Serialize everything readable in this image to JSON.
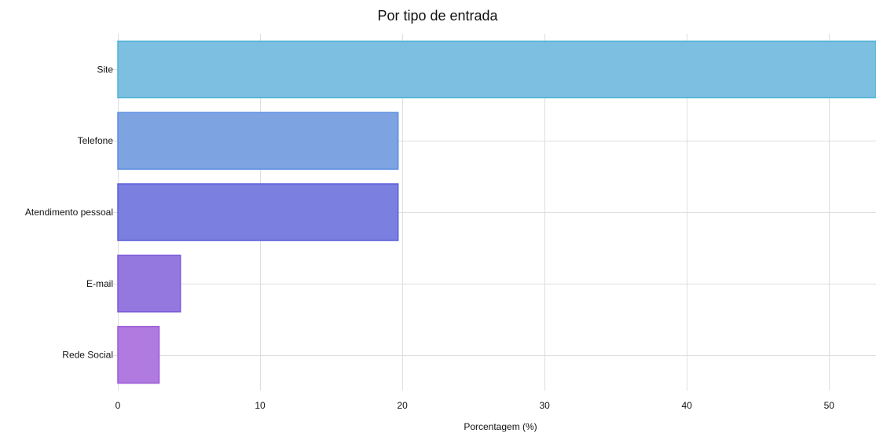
{
  "chart_data": {
    "type": "bar",
    "orientation": "horizontal",
    "title": "Por tipo de entrada",
    "xlabel": "Porcentagem (%)",
    "ylabel": "",
    "categories": [
      "Site",
      "Telefone",
      "Atendimento pessoal",
      "E-mail",
      "Rede Social"
    ],
    "values": [
      53.3,
      19.7,
      19.7,
      4.4,
      2.9
    ],
    "xlim": [
      0,
      53.3
    ],
    "x_ticks": [
      0,
      10,
      20,
      30,
      40,
      50
    ],
    "grid": true,
    "legend": "none",
    "bar_colors": [
      "#7dbfe0",
      "#7ea3e1",
      "#7a7fe0",
      "#9478e0",
      "#b07ae0"
    ],
    "bar_border_colors": [
      "#4fb3d6",
      "#5b8de0",
      "#5a5fd9",
      "#7b59d8",
      "#9a5ad8"
    ],
    "gridline_color": "#dedede"
  }
}
